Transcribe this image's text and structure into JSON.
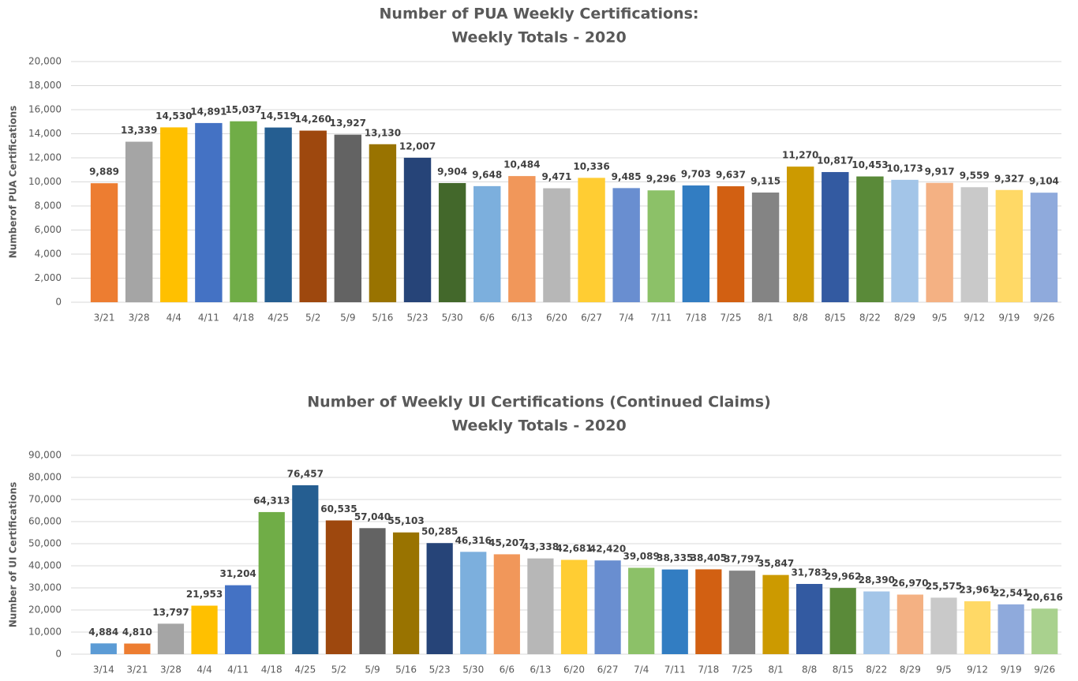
{
  "chart_data": [
    {
      "type": "bar",
      "title": "Number of PUA Weekly Certifications:",
      "subtitle": "Weekly Totals - 2020",
      "y_label": "Numberof PUA Certifications",
      "categories": [
        "3/21",
        "3/28",
        "4/4",
        "4/11",
        "4/18",
        "4/25",
        "5/2",
        "5/9",
        "5/16",
        "5/23",
        "5/30",
        "6/6",
        "6/13",
        "6/20",
        "6/27",
        "7/4",
        "7/11",
        "7/18",
        "7/25",
        "8/1",
        "8/8",
        "8/15",
        "8/22",
        "8/29",
        "9/5",
        "9/12",
        "9/19",
        "9/26"
      ],
      "values": [
        9889,
        13339,
        14530,
        14891,
        15037,
        14519,
        14260,
        13927,
        13130,
        12007,
        9904,
        9648,
        10484,
        9471,
        10336,
        9485,
        9296,
        9703,
        9637,
        9115,
        11270,
        10817,
        10453,
        10173,
        9917,
        9559,
        9327,
        9104
      ],
      "value_labels": [
        "9,889",
        "13,339",
        "14,530",
        "14,891",
        "15,037",
        "14,519",
        "14,260",
        "13,927",
        "13,130",
        "12,007",
        "9,904",
        "9,648",
        "10,484",
        "9,471",
        "10,336",
        "9,485",
        "9,296",
        "9,703",
        "9,637",
        "9,115",
        "11,270",
        "10,817",
        "10,453",
        "10,173",
        "9,917",
        "9,559",
        "9,327",
        "9,104"
      ],
      "colors": [
        "#ED7D31",
        "#A5A5A5",
        "#FFC000",
        "#4472C4",
        "#70AD47",
        "#255E91",
        "#9E480E",
        "#636363",
        "#997300",
        "#264478",
        "#43682B",
        "#7CAFDD",
        "#F1975A",
        "#B7B7B7",
        "#FFCD33",
        "#698ED0",
        "#8CC168",
        "#327DC2",
        "#D26012",
        "#848484",
        "#CC9A00",
        "#335AA1",
        "#5A8A39",
        "#A3C5E8",
        "#F4B183",
        "#C9C9C9",
        "#FFD966",
        "#8FAADC"
      ],
      "ylim": [
        0,
        20000
      ],
      "yticks": [
        0,
        {
          "value": 2000,
          "label": "2,000"
        },
        {
          "value": 4000,
          "label": "4,000"
        },
        {
          "value": 6000,
          "label": "6,000"
        },
        {
          "value": 8000,
          "label": "8,000"
        },
        {
          "value": 10000,
          "label": "10,000"
        },
        {
          "value": 12000,
          "label": "12,000"
        },
        {
          "value": 14000,
          "label": "14,000"
        },
        {
          "value": 16000,
          "label": "16,000"
        },
        {
          "value": 18000,
          "label": "18,000"
        },
        {
          "value": 20000,
          "label": "20,000"
        }
      ],
      "grid": true
    },
    {
      "type": "bar",
      "title": "Number of Weekly UI Certifications (Continued Claims)",
      "subtitle": "Weekly Totals - 2020",
      "y_label": "Number of UI Certifications",
      "categories": [
        "3/14",
        "3/21",
        "3/28",
        "4/4",
        "4/11",
        "4/18",
        "4/25",
        "5/2",
        "5/9",
        "5/16",
        "5/23",
        "5/30",
        "6/6",
        "6/13",
        "6/20",
        "6/27",
        "7/4",
        "7/11",
        "7/18",
        "7/25",
        "8/1",
        "8/8",
        "8/15",
        "8/22",
        "8/29",
        "9/5",
        "9/12",
        "9/19",
        "9/26"
      ],
      "values": [
        4884,
        4810,
        13797,
        21953,
        31204,
        64313,
        76457,
        60535,
        57040,
        55103,
        50285,
        46316,
        45207,
        43338,
        42681,
        42420,
        39089,
        38335,
        38405,
        37797,
        35847,
        31783,
        29962,
        28390,
        26970,
        25575,
        23961,
        22541,
        20616
      ],
      "value_labels": [
        "4,884",
        "4,810",
        "13,797",
        "21,953",
        "31,204",
        "64,313",
        "76,457",
        "60,535",
        "57,040",
        "55,103",
        "50,285",
        "46,316",
        "45,207",
        "43,338",
        "42,681",
        "42,420",
        "39,089",
        "38,335",
        "38,405",
        "37,797",
        "35,847",
        "31,783",
        "29,962",
        "28,390",
        "26,970",
        "25,575",
        "23,961",
        "22,541",
        "20,616"
      ],
      "colors": [
        "#5B9BD5",
        "#ED7D31",
        "#A5A5A5",
        "#FFC000",
        "#4472C4",
        "#70AD47",
        "#255E91",
        "#9E480E",
        "#636363",
        "#997300",
        "#264478",
        "#7CAFDD",
        "#F1975A",
        "#B7B7B7",
        "#FFCD33",
        "#698ED0",
        "#8CC168",
        "#327DC2",
        "#D26012",
        "#848484",
        "#CC9A00",
        "#335AA1",
        "#5A8A39",
        "#A3C5E8",
        "#F4B183",
        "#C9C9C9",
        "#FFD966",
        "#8FAADC",
        "#A9D18E"
      ],
      "ylim": [
        0,
        90000
      ],
      "yticks": [
        0,
        {
          "value": 10000,
          "label": "10,000"
        },
        {
          "value": 20000,
          "label": "20,000"
        },
        {
          "value": 30000,
          "label": "30,000"
        },
        {
          "value": 40000,
          "label": "40,000"
        },
        {
          "value": 50000,
          "label": "50,000"
        },
        {
          "value": 60000,
          "label": "60,000"
        },
        {
          "value": 70000,
          "label": "70,000"
        },
        {
          "value": 80000,
          "label": "80,000"
        },
        {
          "value": 90000,
          "label": "90,000"
        }
      ],
      "grid": true
    }
  ]
}
